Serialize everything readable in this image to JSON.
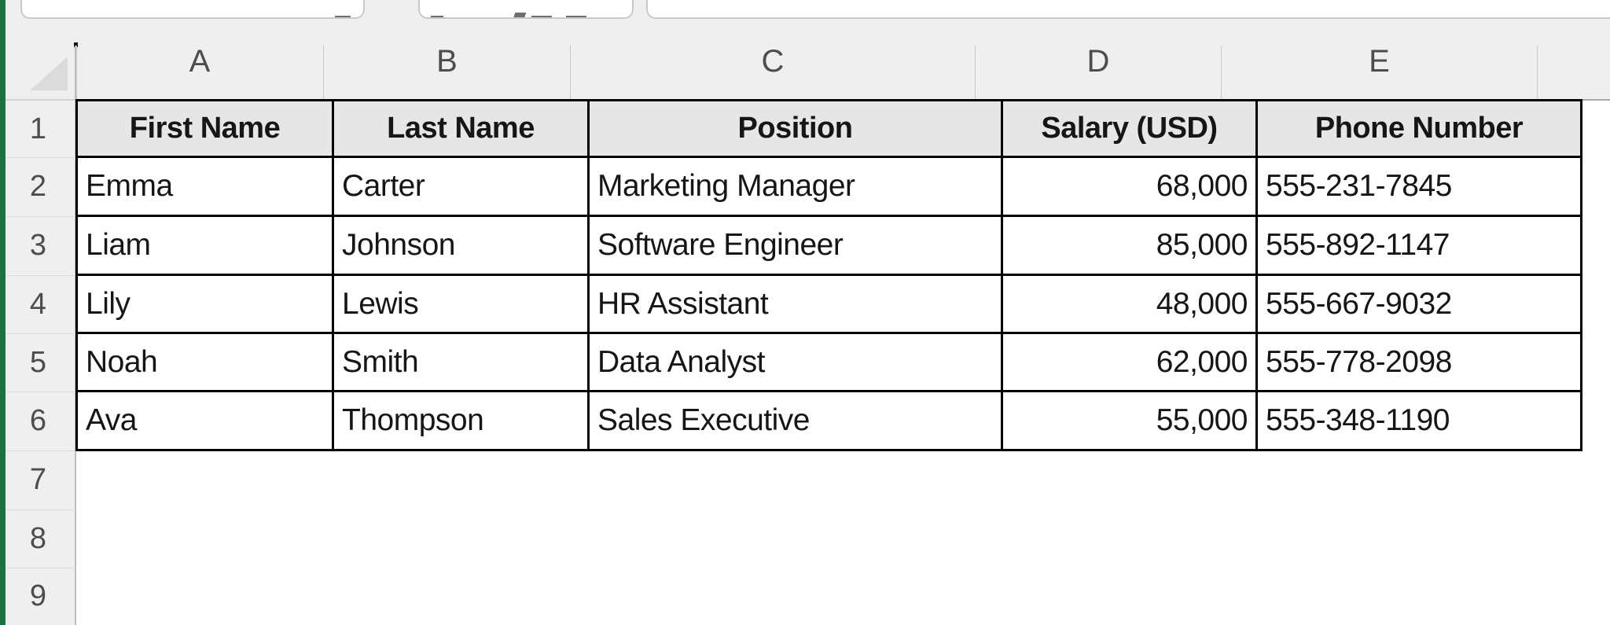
{
  "app": {
    "type": "spreadsheet"
  },
  "formula_bar": {
    "name_box_value": "",
    "formula_value": "",
    "icons": [
      "name-box-dropdown-icon",
      "cancel-icon",
      "enter-icon",
      "fx-icon"
    ]
  },
  "grid": {
    "column_letters": [
      "A",
      "B",
      "C",
      "D",
      "E"
    ],
    "row_numbers": [
      "1",
      "2",
      "3",
      "4",
      "5",
      "6",
      "7",
      "8",
      "9"
    ]
  },
  "table": {
    "headers": [
      "First Name",
      "Last Name",
      "Position",
      "Salary (USD)",
      "Phone Number"
    ],
    "rows": [
      [
        "Emma",
        "Carter",
        "Marketing Manager",
        "68,000",
        "555-231-7845"
      ],
      [
        "Liam",
        "Johnson",
        "Software Engineer",
        "85,000",
        "555-892-1147"
      ],
      [
        "Lily",
        "Lewis",
        "HR Assistant",
        "48,000",
        "555-667-9032"
      ],
      [
        "Noah",
        "Smith",
        "Data Analyst",
        "62,000",
        "555-778-2098"
      ],
      [
        "Ava",
        "Thompson",
        "Sales Executive",
        "55,000",
        "555-348-1190"
      ]
    ],
    "column_alignments": [
      "left",
      "left",
      "left",
      "right",
      "left"
    ]
  },
  "colors": {
    "accent_green": "#1E7044",
    "header_row_fill": "#E7E6E6",
    "panel_gray": "#F0EFEF",
    "table_border": "#000000"
  }
}
